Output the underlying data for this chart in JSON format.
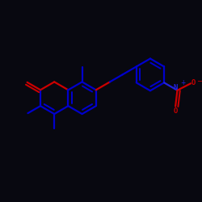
{
  "bg_color": "#080810",
  "bond_color": "#0000cc",
  "oxygen_color": "#cc0000",
  "nitrogen_color": "#2222dd",
  "line_width": 1.6,
  "figsize": [
    2.5,
    2.5
  ],
  "dpi": 100,
  "xlim": [
    -2.4,
    2.6
  ],
  "ylim": [
    -2.0,
    2.0
  ]
}
